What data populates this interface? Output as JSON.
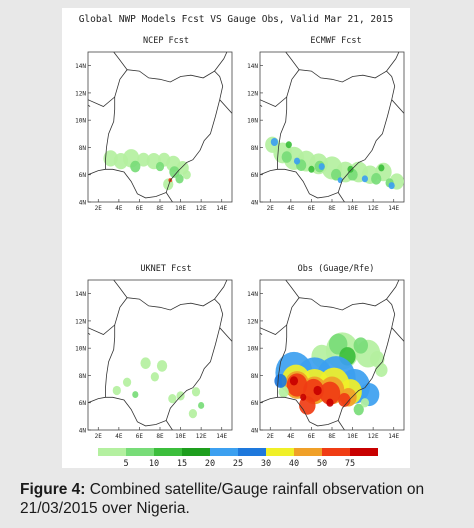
{
  "figure": {
    "title": "Global NWP Models Fcst VS Gauge Obs, Valid Mar 21, 2015",
    "lat_labels": [
      "14N",
      "12N",
      "10N",
      "8N",
      "6N",
      "4N"
    ],
    "lon_labels": [
      "2E",
      "4E",
      "6E",
      "8E",
      "10E",
      "12E",
      "14E"
    ],
    "panels": [
      {
        "title": "NCEP Fcst",
        "rain": "light-south"
      },
      {
        "title": "ECMWF Fcst",
        "rain": "medium-south"
      },
      {
        "title": "UKNET Fcst",
        "rain": "scattered-light"
      },
      {
        "title": "Obs (Guage/Rfe)",
        "rain": "heavy-southwest"
      }
    ],
    "legend": {
      "labels": [
        "5",
        "10",
        "15",
        "20",
        "25",
        "30",
        "40",
        "50",
        "75"
      ],
      "colors": [
        "#b4f0a0",
        "#78dc78",
        "#3cbe3c",
        "#1e9e1e",
        "#3ca0f0",
        "#1e78dc",
        "#f0f028",
        "#f0a028",
        "#f03c14",
        "#c80000"
      ]
    }
  },
  "caption": {
    "label": "Figure 4:",
    "text": " Combined satellite/Gauge rainfall observation on 21/03/2015 over Nigeria."
  }
}
